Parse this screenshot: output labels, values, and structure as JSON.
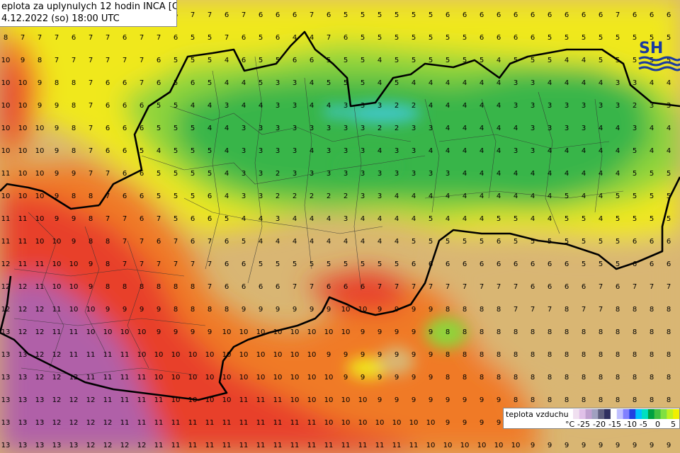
{
  "title": {
    "line1": "eplota za uplynulych 12 hodin INCA [C]",
    "line2": "4.12.2022 (so) 18:00 UTC"
  },
  "legend": {
    "title": "teplota vzduchu",
    "unit": "°C",
    "ticks": [
      "-25",
      "-20",
      "-15",
      "-10",
      "-5",
      "0",
      "5"
    ],
    "colors": [
      "#f0e0f0",
      "#e0c0e8",
      "#c0a0d0",
      "#a0a0c0",
      "#606080",
      "#303060",
      "#ffffff",
      "#c0c0ff",
      "#8080ff",
      "#2040e0",
      "#00c0ff",
      "#00e0c0",
      "#00a040",
      "#40c040",
      "#80e040",
      "#c0f020",
      "#f0f000"
    ]
  },
  "logo": {
    "text": "SH"
  },
  "colors": {
    "cold": "#39b54a",
    "cool": "#8fd43a",
    "mild": "#f0e81e",
    "warm": "#d9b673",
    "hot": "#f07a28",
    "hotter": "#e8402a",
    "hottest": "#b060a8",
    "coldest": "#40c8c8",
    "border": "#000000"
  },
  "grid_values": [
    [
      7,
      6,
      7,
      6,
      6,
      7,
      7,
      6,
      6,
      7,
      6,
      7,
      7,
      6,
      7,
      6,
      6,
      6,
      7,
      6,
      5,
      5,
      5,
      5,
      5,
      5,
      6,
      6,
      6,
      6,
      6,
      6,
      6,
      6,
      6,
      6,
      7,
      6,
      6,
      6
    ],
    [
      8,
      7,
      7,
      7,
      6,
      7,
      7,
      6,
      7,
      7,
      6,
      5,
      5,
      7,
      6,
      5,
      6,
      4,
      4,
      7,
      6,
      5,
      5,
      5,
      5,
      5,
      5,
      5,
      6,
      6,
      6,
      6,
      5,
      5,
      5,
      5,
      5,
      5,
      5,
      5
    ],
    [
      10,
      9,
      8,
      7,
      7,
      7,
      7,
      7,
      7,
      6,
      5,
      5,
      5,
      4,
      6,
      5,
      5,
      6,
      6,
      5,
      5,
      5,
      4,
      5,
      5,
      5,
      5,
      5,
      5,
      4,
      5,
      5,
      5,
      4,
      4,
      5,
      5,
      5,
      5,
      5
    ],
    [
      10,
      10,
      9,
      8,
      8,
      7,
      6,
      6,
      7,
      6,
      5,
      6,
      5,
      4,
      4,
      5,
      3,
      3,
      4,
      5,
      5,
      5,
      4,
      5,
      4,
      4,
      4,
      4,
      4,
      4,
      3,
      3,
      4,
      4,
      4,
      4,
      3,
      3,
      4,
      4
    ],
    [
      10,
      10,
      9,
      9,
      8,
      7,
      6,
      6,
      6,
      5,
      5,
      4,
      4,
      3,
      4,
      4,
      3,
      3,
      4,
      4,
      3,
      3,
      3,
      2,
      2,
      4,
      4,
      4,
      4,
      4,
      3,
      3,
      3,
      3,
      3,
      3,
      3,
      2,
      3,
      3
    ],
    [
      10,
      10,
      10,
      9,
      8,
      7,
      6,
      6,
      6,
      5,
      5,
      5,
      4,
      4,
      3,
      3,
      3,
      3,
      3,
      3,
      3,
      3,
      2,
      2,
      3,
      3,
      4,
      4,
      4,
      4,
      4,
      3,
      3,
      3,
      3,
      4,
      4,
      3,
      4,
      4
    ],
    [
      10,
      10,
      10,
      9,
      8,
      7,
      6,
      6,
      5,
      4,
      5,
      5,
      5,
      4,
      3,
      3,
      3,
      3,
      4,
      3,
      3,
      3,
      4,
      3,
      3,
      4,
      4,
      4,
      4,
      4,
      3,
      3,
      4,
      4,
      4,
      4,
      4,
      5,
      4,
      4
    ],
    [
      11,
      10,
      10,
      9,
      9,
      7,
      7,
      6,
      6,
      5,
      5,
      5,
      5,
      4,
      3,
      3,
      2,
      3,
      3,
      3,
      3,
      3,
      3,
      3,
      3,
      3,
      3,
      4,
      4,
      4,
      4,
      4,
      4,
      4,
      4,
      4,
      4,
      5,
      5,
      5
    ],
    [
      10,
      10,
      10,
      9,
      8,
      8,
      7,
      6,
      6,
      5,
      5,
      5,
      6,
      4,
      3,
      3,
      2,
      2,
      2,
      2,
      2,
      3,
      3,
      4,
      4,
      4,
      4,
      4,
      4,
      4,
      4,
      4,
      4,
      5,
      4,
      4,
      5,
      5,
      5,
      5
    ],
    [
      11,
      11,
      10,
      9,
      9,
      8,
      7,
      7,
      6,
      7,
      5,
      6,
      6,
      5,
      4,
      4,
      3,
      4,
      4,
      4,
      3,
      4,
      4,
      4,
      4,
      5,
      4,
      4,
      4,
      5,
      5,
      4,
      4,
      5,
      5,
      4,
      5,
      5,
      5,
      5
    ],
    [
      11,
      11,
      10,
      10,
      9,
      8,
      8,
      7,
      7,
      6,
      7,
      6,
      7,
      6,
      5,
      4,
      4,
      4,
      4,
      4,
      4,
      4,
      4,
      4,
      5,
      5,
      5,
      5,
      5,
      6,
      5,
      5,
      5,
      5,
      5,
      5,
      5,
      6,
      6,
      6
    ],
    [
      12,
      11,
      11,
      10,
      10,
      9,
      8,
      7,
      7,
      7,
      7,
      7,
      7,
      6,
      6,
      5,
      5,
      5,
      5,
      5,
      5,
      5,
      5,
      5,
      6,
      6,
      6,
      6,
      6,
      6,
      6,
      6,
      6,
      6,
      5,
      5,
      5,
      6,
      6,
      6
    ],
    [
      12,
      12,
      11,
      10,
      10,
      9,
      8,
      8,
      8,
      8,
      8,
      8,
      7,
      6,
      6,
      6,
      6,
      7,
      7,
      6,
      6,
      6,
      7,
      7,
      7,
      7,
      7,
      7,
      7,
      7,
      7,
      6,
      6,
      6,
      6,
      7,
      6,
      7,
      7,
      7
    ],
    [
      12,
      12,
      12,
      11,
      10,
      10,
      9,
      9,
      9,
      9,
      8,
      8,
      8,
      8,
      9,
      9,
      9,
      9,
      9,
      9,
      10,
      10,
      9,
      9,
      9,
      9,
      8,
      8,
      8,
      8,
      7,
      7,
      7,
      8,
      7,
      7,
      8,
      8,
      8,
      8
    ],
    [
      13,
      12,
      12,
      11,
      11,
      10,
      10,
      10,
      10,
      9,
      9,
      9,
      9,
      10,
      10,
      10,
      10,
      10,
      10,
      10,
      10,
      9,
      9,
      9,
      9,
      9,
      8,
      8,
      8,
      8,
      8,
      8,
      8,
      8,
      8,
      8,
      8,
      8,
      8,
      8
    ],
    [
      13,
      13,
      12,
      12,
      11,
      11,
      11,
      11,
      10,
      10,
      10,
      10,
      10,
      10,
      10,
      10,
      10,
      10,
      10,
      9,
      9,
      9,
      9,
      9,
      9,
      9,
      8,
      8,
      8,
      8,
      8,
      8,
      8,
      8,
      8,
      8,
      8,
      8,
      8,
      8
    ],
    [
      13,
      13,
      12,
      12,
      12,
      11,
      11,
      11,
      11,
      10,
      10,
      10,
      10,
      10,
      10,
      10,
      10,
      10,
      10,
      10,
      9,
      9,
      9,
      9,
      9,
      9,
      8,
      8,
      8,
      8,
      8,
      8,
      8,
      8,
      8,
      8,
      8,
      8,
      8,
      8
    ],
    [
      13,
      13,
      13,
      12,
      12,
      12,
      11,
      11,
      11,
      11,
      10,
      10,
      10,
      10,
      11,
      11,
      11,
      10,
      10,
      10,
      10,
      10,
      9,
      9,
      9,
      9,
      9,
      9,
      9,
      9,
      8,
      8,
      8,
      8,
      8,
      8,
      8,
      8,
      8,
      8
    ],
    [
      13,
      13,
      13,
      12,
      12,
      12,
      12,
      11,
      11,
      11,
      11,
      11,
      11,
      11,
      11,
      11,
      11,
      11,
      11,
      10,
      10,
      10,
      10,
      10,
      10,
      10,
      9,
      9,
      9,
      9,
      9,
      9,
      9,
      9,
      9,
      9,
      9,
      9,
      9,
      9
    ],
    [
      13,
      13,
      13,
      13,
      13,
      12,
      12,
      12,
      12,
      11,
      11,
      11,
      11,
      11,
      11,
      11,
      11,
      11,
      11,
      11,
      11,
      11,
      11,
      11,
      11,
      10,
      10,
      10,
      10,
      10,
      10,
      9,
      9,
      9,
      9,
      9,
      9,
      9,
      9,
      9
    ]
  ]
}
